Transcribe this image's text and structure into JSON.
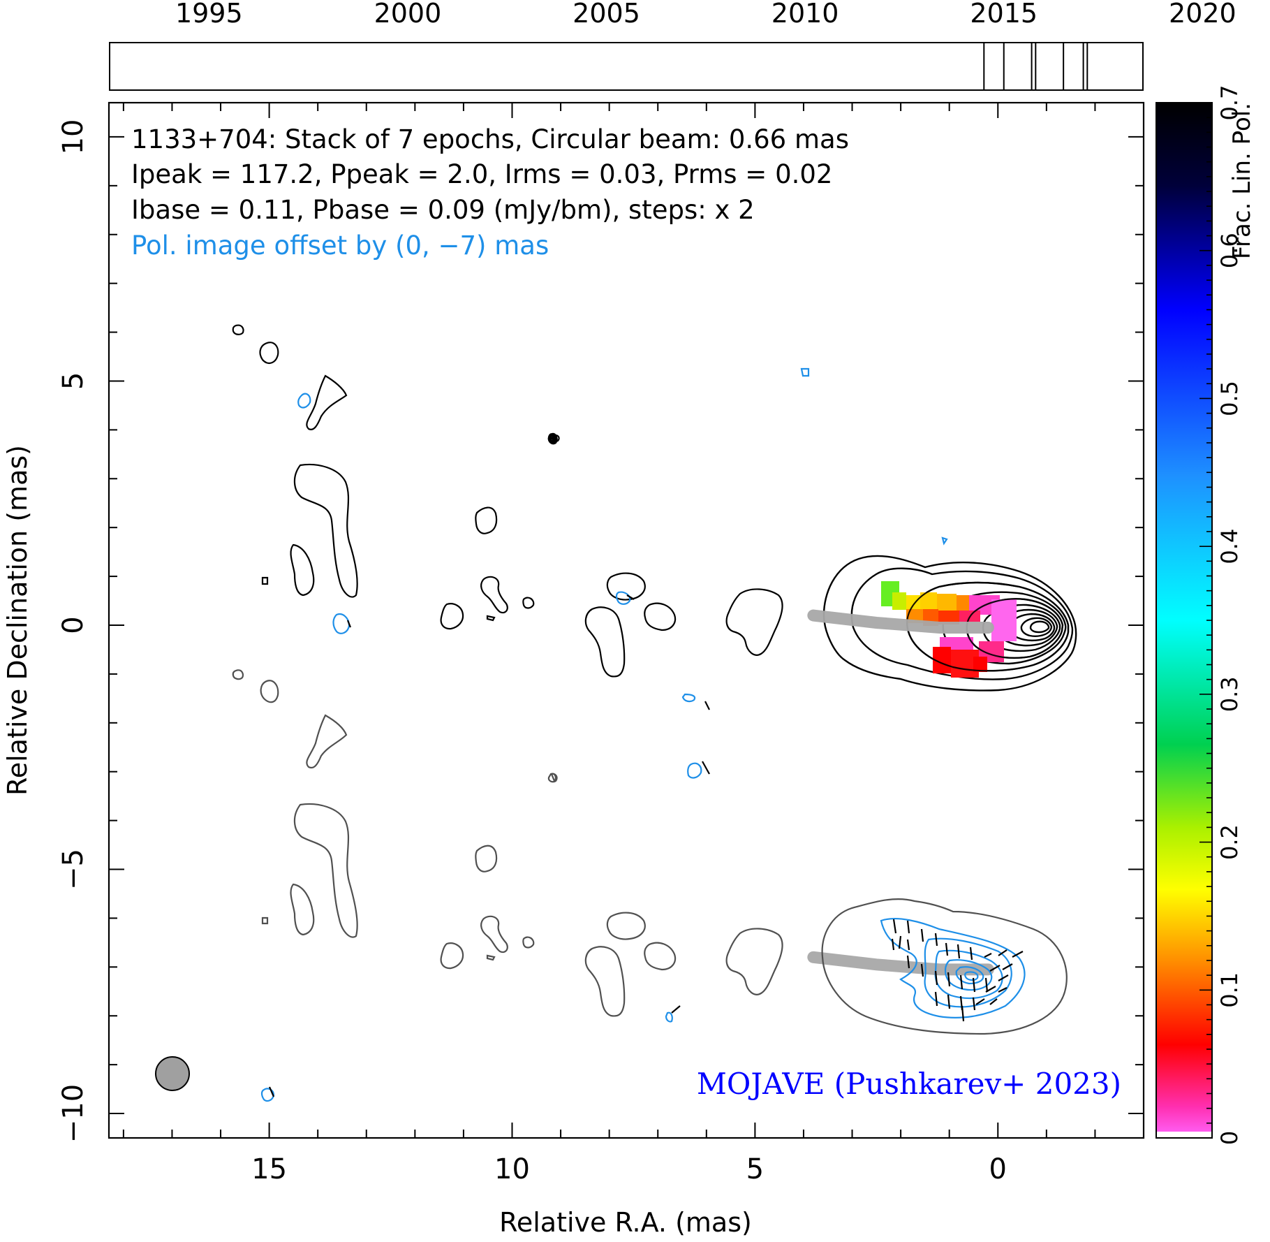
{
  "timeline": {
    "years": [
      "1995",
      "2000",
      "2005",
      "2010",
      "2015",
      "2020"
    ],
    "year_range": [
      1992.5,
      2018.5
    ],
    "epochs": [
      2014.5,
      2015.0,
      2015.7,
      2015.8,
      2016.5,
      2017.0,
      2017.1
    ]
  },
  "chart_data": {
    "type": "contour",
    "header": {
      "line1": "1133+704: Stack of 7 epochs, Circular beam: 0.66 mas",
      "line2": "Ipeak = 117.2, Ppeak = 2.0, Irms = 0.03, Prms = 0.02",
      "line3": "Ibase = 0.11, Pbase = 0.09 (mJy/bm), steps: x 2",
      "line4": "Pol. image offset by (0, −7) mas"
    },
    "credit": "MOJAVE (Pushkarev+ 2023)",
    "xlabel": "Relative R.A. (mas)",
    "ylabel": "Relative Declination (mas)",
    "xlim": [
      18.3,
      -3.0
    ],
    "ylim": [
      -10.5,
      10.7
    ],
    "x_ticks": [
      "15",
      "10",
      "5",
      "0"
    ],
    "y_ticks": [
      "10",
      "5",
      "0",
      "−5",
      "−10"
    ],
    "beam_mas": 0.66,
    "colorbar": {
      "label": "Frac. Lin. Pol.",
      "range": [
        0,
        0.7
      ],
      "ticks": [
        "0",
        "0.1",
        "0.2",
        "0.3",
        "0.4",
        "0.5",
        "0.6",
        "0.7"
      ]
    },
    "colors": {
      "stokes_i": "#000000",
      "stokes_i_offset": "#505050",
      "polarization": "#1e8fe8",
      "ridge": "#a8a8a8",
      "offset_text": "#1e8fe8",
      "credit": "#0000ff"
    },
    "core_position_mas": [
      0,
      0
    ],
    "ridge_line": [
      [
        3.8,
        0.2
      ],
      [
        2.5,
        0.05
      ],
      [
        1.2,
        -0.05
      ],
      [
        0.2,
        -0.05
      ]
    ]
  }
}
